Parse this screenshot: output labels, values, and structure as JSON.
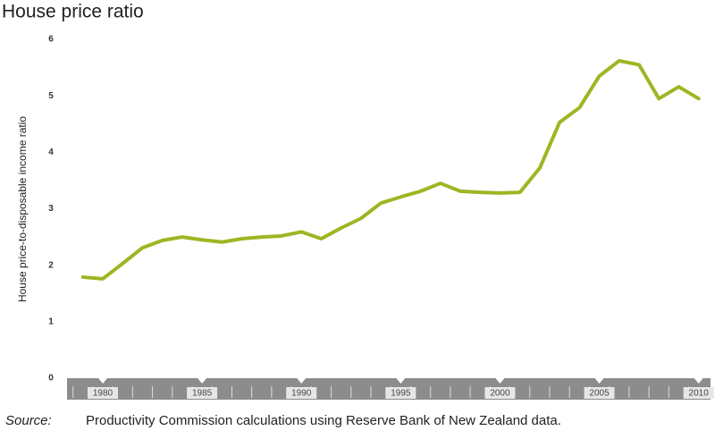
{
  "chart_data": {
    "type": "line",
    "title": "House price ratio",
    "y_label": "House price-to-disposable income ratio",
    "source_label": "Source:",
    "source": "Productivity Commission calculations using Reserve Bank of New Zealand data.",
    "x": [
      1979,
      1980,
      1981,
      1982,
      1983,
      1984,
      1985,
      1986,
      1987,
      1988,
      1989,
      1990,
      1991,
      1992,
      1993,
      1994,
      1995,
      1996,
      1997,
      1998,
      1999,
      2000,
      2001,
      2002,
      2003,
      2004,
      2005,
      2006,
      2007,
      2008,
      2009,
      2010
    ],
    "series": [
      {
        "name": "House price-to-disposable income ratio",
        "color": "#9fb523",
        "values": [
          1.79,
          1.76,
          2.03,
          2.31,
          2.44,
          2.5,
          2.45,
          2.41,
          2.47,
          2.5,
          2.52,
          2.59,
          2.47,
          2.66,
          2.83,
          3.1,
          3.21,
          3.31,
          3.45,
          3.31,
          3.29,
          3.28,
          3.29,
          3.72,
          4.53,
          4.79,
          5.35,
          5.62,
          5.55,
          4.95,
          5.16,
          4.95
        ]
      }
    ],
    "xlim": [
      1978.2,
      2010.6
    ],
    "xticks": [
      1980,
      1985,
      1990,
      1995,
      2000,
      2005,
      2010
    ],
    "ylim": [
      0,
      6
    ],
    "yticks": [
      0,
      1,
      2,
      3,
      4,
      5,
      6
    ],
    "grid": false
  }
}
